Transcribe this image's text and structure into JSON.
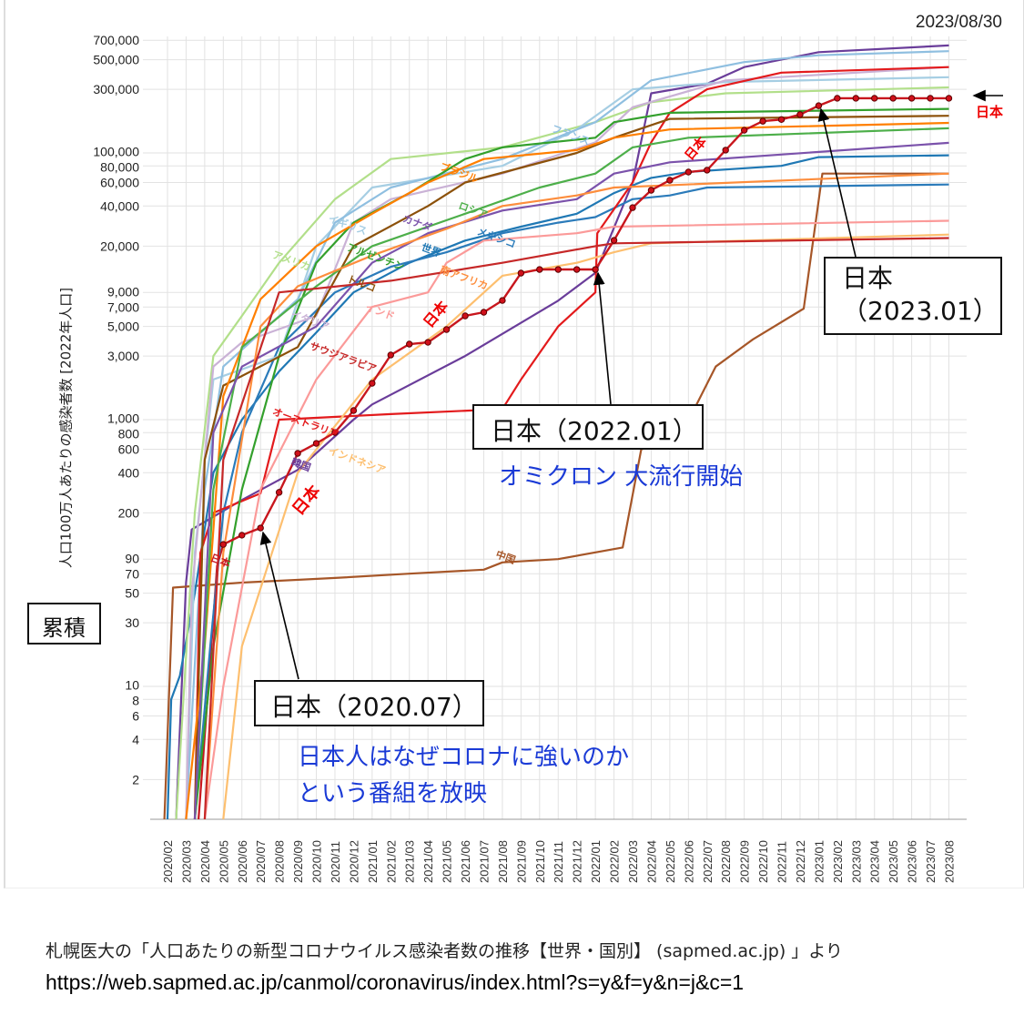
{
  "date": "2023/08/30",
  "y_axis_title": "人口100万人あたりの感染者数 [2022年人口]",
  "cumulative_label": "累積",
  "right_marker_label": "日本",
  "annotations": {
    "japan_2020_07": "日本（2020.07）",
    "japan_2022_01": "日本（2022.01）",
    "japan_2023_01_line1": "日本",
    "japan_2023_01_line2": "（2023.01）",
    "omicron": "オミクロン 大流行開始",
    "tv_line1": "日本人はなぜコロナに強いのか",
    "tv_line2": "という番組を放映"
  },
  "footer": {
    "source": "札幌医大の「人口あたりの新型コロナウイルス感染者数の推移【世界・国別】 (sapmed.ac.jp) 」より",
    "url": "https://web.sapmed.ac.jp/canmol/coronavirus/index.html?s=y&f=y&n=j&c=1"
  },
  "chart_data": {
    "type": "line",
    "title": "",
    "xlabel": "",
    "ylabel": "人口100万人あたりの感染者数 [2022年人口]",
    "y_scale": "log",
    "ylim": [
      1,
      700000
    ],
    "grid": true,
    "legend": "inline labels",
    "x_ticks": [
      "2020/02",
      "2020/03",
      "2020/04",
      "2020/05",
      "2020/06",
      "2020/07",
      "2020/08",
      "2020/09",
      "2020/10",
      "2020/11",
      "2020/12",
      "2021/01",
      "2021/02",
      "2021/03",
      "2021/04",
      "2021/05",
      "2021/06",
      "2021/07",
      "2021/08",
      "2021/09",
      "2021/10",
      "2021/11",
      "2021/12",
      "2022/01",
      "2022/02",
      "2022/03",
      "2022/04",
      "2022/05",
      "2022/06",
      "2022/07",
      "2022/08",
      "2022/09",
      "2022/10",
      "2022/11",
      "2022/12",
      "2023/01",
      "2023/02",
      "2023/03",
      "2023/04",
      "2023/05",
      "2023/06",
      "2023/07",
      "2023/08"
    ],
    "y_ticks": [
      "700,000",
      "500,000",
      "300,000",
      "100,000",
      "80,000",
      "60,000",
      "40,000",
      "20,000",
      "9,000",
      "7,000",
      "5,000",
      "3,000",
      "1,000",
      "800",
      "600",
      "400",
      "200",
      "90",
      "70",
      "50",
      "30",
      "10",
      "8",
      "6",
      "4",
      "2"
    ],
    "japan_monthly": {
      "name": "日本",
      "color": "#c8161d",
      "start": "2020/05",
      "values": [
        116,
        136,
        154,
        285,
        559,
        664,
        802,
        1170,
        1874,
        3054,
        3686,
        3800,
        4740,
        6000,
        6390,
        7830,
        12560,
        13370,
        13370,
        13370,
        13370,
        22100,
        38900,
        52500,
        62400,
        71900,
        74300,
        105000,
        148000,
        173000,
        178000,
        194000,
        226000,
        257000,
        257000,
        257000,
        257000,
        257000,
        257000,
        257000
      ]
    },
    "series": [
      {
        "name": "日本",
        "color": "#c8161d",
        "points": [
          [
            "2020/03/21",
            1
          ],
          [
            "2020/04/07",
            10
          ],
          [
            "2020/04/21",
            80
          ],
          [
            "2020/05",
            116
          ]
        ]
      },
      {
        "name": "韓国",
        "color": "#6a3d9a",
        "points": [
          [
            "2020/02/15",
            1
          ],
          [
            "2020/03",
            60
          ],
          [
            "2020/03/10",
            150
          ],
          [
            "2020/06",
            250
          ],
          [
            "2020/09",
            420
          ],
          [
            "2020/12",
            1000
          ],
          [
            "2021/01",
            1300
          ],
          [
            "2021/06",
            3000
          ],
          [
            "2021/11",
            7800
          ],
          [
            "2022/01",
            12600
          ],
          [
            "2022/03",
            60000
          ],
          [
            "2022/04",
            280000
          ],
          [
            "2022/07",
            330000
          ],
          [
            "2022/09",
            440000
          ],
          [
            "2023/01",
            570000
          ],
          [
            "2023/08",
            640000
          ]
        ]
      },
      {
        "name": "中国",
        "color": "#a65628",
        "points": [
          [
            "2020/01/26",
            1
          ],
          [
            "2020/02/10",
            55
          ],
          [
            "2020/06",
            60
          ],
          [
            "2020/11",
            65
          ],
          [
            "2021/03",
            70
          ],
          [
            "2021/07",
            75
          ],
          [
            "2021/08",
            85
          ],
          [
            "2021/11",
            90
          ],
          [
            "2022/02/15",
            110
          ],
          [
            "2022/03/15",
            600
          ],
          [
            "2022/05/15",
            700
          ],
          [
            "2022/07/15",
            2500
          ],
          [
            "2022/09/15",
            4000
          ],
          [
            "2022/12/07",
            6800
          ],
          [
            "2023/01/07",
            70000
          ],
          [
            "2023/08",
            70000
          ]
        ]
      },
      {
        "name": "世界",
        "color": "#1f78b4",
        "points": [
          [
            "2020/02",
            1
          ],
          [
            "2020/02/07",
            8
          ],
          [
            "2020/02/21",
            12
          ],
          [
            "2020/03/15",
            50
          ],
          [
            "2020/04/15",
            400
          ],
          [
            "2020/06",
            1000
          ],
          [
            "2020/08",
            2300
          ],
          [
            "2020/10",
            4500
          ],
          [
            "2020/12",
            9000
          ],
          [
            "2021/03",
            15000
          ],
          [
            "2021/06",
            22000
          ],
          [
            "2021/09",
            28000
          ],
          [
            "2021/12",
            35000
          ],
          [
            "2022/02",
            50000
          ],
          [
            "2022/04",
            65000
          ],
          [
            "2022/06",
            72000
          ],
          [
            "2022/11",
            80000
          ],
          [
            "2023/01",
            93000
          ],
          [
            "2023/08",
            96000
          ]
        ]
      },
      {
        "name": "メキシコ",
        "color": "#2b7bba",
        "points": [
          [
            "2020/03/15",
            1
          ],
          [
            "2020/04/10",
            20
          ],
          [
            "2020/05",
            200
          ],
          [
            "2020/06",
            800
          ],
          [
            "2020/08",
            3500
          ],
          [
            "2020/11",
            9000
          ],
          [
            "2021/02",
            14000
          ],
          [
            "2021/05",
            18000
          ],
          [
            "2021/08",
            25000
          ],
          [
            "2021/11",
            30000
          ],
          [
            "2022/01",
            33000
          ],
          [
            "2022/03",
            45000
          ],
          [
            "2022/05",
            48000
          ],
          [
            "2022/07",
            55000
          ],
          [
            "2023/08",
            58000
          ]
        ]
      },
      {
        "name": "アメリカ",
        "color": "#b2df8a",
        "points": [
          [
            "2020/02/15",
            1
          ],
          [
            "2020/03/15",
            200
          ],
          [
            "2020/04/15",
            3000
          ],
          [
            "2020/06",
            6000
          ],
          [
            "2020/08",
            15000
          ],
          [
            "2020/11",
            45000
          ],
          [
            "2021/02",
            90000
          ],
          [
            "2021/08",
            110000
          ],
          [
            "2022/01",
            170000
          ],
          [
            "2022/04",
            240000
          ],
          [
            "2022/08",
            280000
          ],
          [
            "2023/08",
            310000
          ]
        ]
      },
      {
        "name": "イギリス",
        "color": "#a6cee3",
        "points": [
          [
            "2020/03",
            1
          ],
          [
            "2020/03/15",
            100
          ],
          [
            "2020/04/15",
            2000
          ],
          [
            "2020/08",
            3000
          ],
          [
            "2020/10",
            20000
          ],
          [
            "2021/01",
            55000
          ],
          [
            "2021/08",
            80000
          ],
          [
            "2021/12",
            150000
          ],
          [
            "2022/03",
            300000
          ],
          [
            "2022/08",
            340000
          ],
          [
            "2023/08",
            370000
          ]
        ]
      },
      {
        "name": "フランス",
        "color": "#8fbfe0",
        "points": [
          [
            "2020/03",
            1
          ],
          [
            "2020/04",
            300
          ],
          [
            "2020/05",
            2500
          ],
          [
            "2020/09",
            8000
          ],
          [
            "2020/11",
            30000
          ],
          [
            "2021/02",
            55000
          ],
          [
            "2021/08",
            90000
          ],
          [
            "2022/01",
            170000
          ],
          [
            "2022/04",
            350000
          ],
          [
            "2022/09",
            480000
          ],
          [
            "2023/01",
            540000
          ],
          [
            "2023/08",
            580000
          ]
        ]
      },
      {
        "name": "イタリア",
        "color": "#cab2d6",
        "points": [
          [
            "2020/03",
            1
          ],
          [
            "2020/03/10",
            50
          ],
          [
            "2020/04/15",
            2500
          ],
          [
            "2020/06",
            3800
          ],
          [
            "2020/10",
            6000
          ],
          [
            "2020/12",
            30000
          ],
          [
            "2021/02",
            45000
          ],
          [
            "2021/08",
            70000
          ],
          [
            "2022/01",
            120000
          ],
          [
            "2022/03",
            220000
          ],
          [
            "2022/08",
            350000
          ],
          [
            "2023/08",
            440000
          ]
        ]
      },
      {
        "name": "オーストラリア",
        "color": "#e31a1c",
        "points": [
          [
            "2020/03/15",
            1
          ],
          [
            "2020/03/24",
            100
          ],
          [
            "2020/04/15",
            200
          ],
          [
            "2020/07",
            280
          ],
          [
            "2020/08",
            1000
          ],
          [
            "2021/02",
            1100
          ],
          [
            "2021/08",
            1200
          ],
          [
            "2021/09",
            2000
          ],
          [
            "2021/11",
            5000
          ],
          [
            "2022/01",
            9000
          ],
          [
            "2022/01/04",
            25000
          ],
          [
            "2022/03",
            60000
          ],
          [
            "2022/04",
            120000
          ],
          [
            "2022/05",
            200000
          ],
          [
            "2022/07",
            300000
          ],
          [
            "2022/11",
            400000
          ],
          [
            "2023/08",
            440000
          ]
        ]
      },
      {
        "name": "アルゼンチン",
        "color": "#33a02c",
        "points": [
          [
            "2020/03/15",
            1
          ],
          [
            "2020/04/15",
            20
          ],
          [
            "2020/06",
            300
          ],
          [
            "2020/08",
            3000
          ],
          [
            "2020/10",
            15000
          ],
          [
            "2020/12",
            30000
          ],
          [
            "2021/03",
            50000
          ],
          [
            "2021/06",
            90000
          ],
          [
            "2021/08",
            110000
          ],
          [
            "2022/01",
            130000
          ],
          [
            "2022/02",
            170000
          ],
          [
            "2022/05",
            200000
          ],
          [
            "2023/08",
            214000
          ]
        ]
      },
      {
        "name": "トルコ",
        "color": "#8c510a",
        "points": [
          [
            "2020/03/15",
            1
          ],
          [
            "2020/04",
            500
          ],
          [
            "2020/05",
            1800
          ],
          [
            "2020/09",
            3500
          ],
          [
            "2020/12",
            20000
          ],
          [
            "2021/04",
            40000
          ],
          [
            "2021/06",
            60000
          ],
          [
            "2021/12",
            100000
          ],
          [
            "2022/02",
            130000
          ],
          [
            "2022/05",
            180000
          ],
          [
            "2023/08",
            190000
          ]
        ]
      },
      {
        "name": "ブラジル",
        "color": "#ff7f00",
        "points": [
          [
            "2020/03",
            1
          ],
          [
            "2020/04",
            20
          ],
          [
            "2020/05",
            1500
          ],
          [
            "2020/07",
            8000
          ],
          [
            "2020/10",
            20000
          ],
          [
            "2021/01",
            35000
          ],
          [
            "2021/04",
            60000
          ],
          [
            "2021/07",
            90000
          ],
          [
            "2021/12",
            105000
          ],
          [
            "2022/02",
            130000
          ],
          [
            "2022/05",
            150000
          ],
          [
            "2023/08",
            168000
          ]
        ]
      },
      {
        "name": "ロシア",
        "color": "#4daf4a",
        "points": [
          [
            "2020/03/15",
            1
          ],
          [
            "2020/04/15",
            300
          ],
          [
            "2020/06",
            3500
          ],
          [
            "2020/10",
            10000
          ],
          [
            "2021/01",
            20000
          ],
          [
            "2021/06",
            35000
          ],
          [
            "2021/10",
            55000
          ],
          [
            "2022/01",
            70000
          ],
          [
            "2022/03",
            110000
          ],
          [
            "2022/06",
            130000
          ],
          [
            "2023/08",
            153000
          ]
        ]
      },
      {
        "name": "カナダ",
        "color": "#7b52ab",
        "points": [
          [
            "2020/03/15",
            1
          ],
          [
            "2020/04/15",
            800
          ],
          [
            "2020/06",
            2500
          ],
          [
            "2020/10",
            5000
          ],
          [
            "2021/01",
            15000
          ],
          [
            "2021/04",
            25000
          ],
          [
            "2021/08",
            37000
          ],
          [
            "2021/12",
            45000
          ],
          [
            "2022/02",
            70000
          ],
          [
            "2022/05",
            85000
          ],
          [
            "2023/08",
            119000
          ]
        ]
      },
      {
        "name": "南アフリカ",
        "color": "#fd8d3c",
        "points": [
          [
            "2020/04",
            1
          ],
          [
            "2020/05",
            100
          ],
          [
            "2020/07",
            5000
          ],
          [
            "2020/09",
            10000
          ],
          [
            "2021/01",
            17000
          ],
          [
            "2021/05",
            27000
          ],
          [
            "2021/08",
            40000
          ],
          [
            "2021/12",
            48000
          ],
          [
            "2022/02",
            55000
          ],
          [
            "2023/08",
            70000
          ]
        ]
      },
      {
        "name": "インド",
        "color": "#fb9a99",
        "points": [
          [
            "2020/04",
            1
          ],
          [
            "2020/05",
            10
          ],
          [
            "2020/07",
            300
          ],
          [
            "2020/10",
            2000
          ],
          [
            "2021/01",
            7000
          ],
          [
            "2021/04",
            9000
          ],
          [
            "2021/05",
            15000
          ],
          [
            "2021/07",
            22000
          ],
          [
            "2021/12",
            25000
          ],
          [
            "2022/02",
            28000
          ],
          [
            "2023/08",
            31000
          ]
        ]
      },
      {
        "name": "インドネシア",
        "color": "#fdbf6f",
        "points": [
          [
            "2020/05",
            1
          ],
          [
            "2020/06",
            20
          ],
          [
            "2020/09",
            400
          ],
          [
            "2021/01",
            2000
          ],
          [
            "2021/05",
            5000
          ],
          [
            "2021/08",
            12000
          ],
          [
            "2021/12",
            15000
          ],
          [
            "2022/02",
            18000
          ],
          [
            "2022/04",
            21000
          ],
          [
            "2023/08",
            24400
          ]
        ]
      },
      {
        "name": "サウジアラビア",
        "color": "#c62828",
        "points": [
          [
            "2020/04",
            1
          ],
          [
            "2020/05",
            500
          ],
          [
            "2020/08",
            9000
          ],
          [
            "2021/02",
            11000
          ],
          [
            "2021/08",
            15000
          ],
          [
            "2022/01",
            20000
          ],
          [
            "2022/02",
            21000
          ],
          [
            "2023/08",
            23000
          ]
        ]
      }
    ]
  }
}
